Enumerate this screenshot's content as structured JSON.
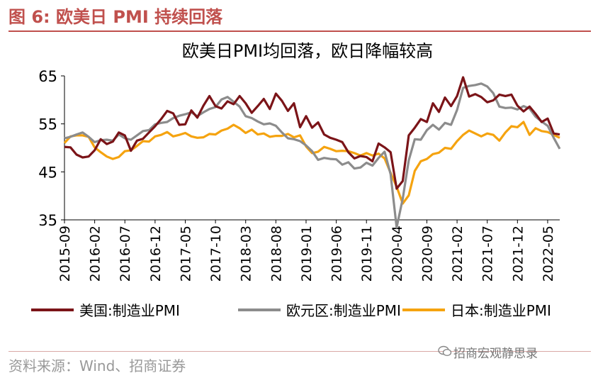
{
  "figure_title": "图 6:  欧美日 PMI 持续回落",
  "source": "资料来源：Wind、招商证券",
  "watermark": "招商宏观静思录",
  "colors": {
    "accent": "#c0504d",
    "us": "#7b1418",
    "eu": "#8c8c8c",
    "jp": "#f5a30f"
  },
  "chart_data": {
    "type": "line",
    "title": "欧美日PMI均回落，欧日降幅较高",
    "ylim": [
      35,
      65
    ],
    "yticks": [
      35,
      45,
      55,
      65
    ],
    "xlim": [
      "2015-09",
      "2022-07"
    ],
    "xticks": [
      "2015-09",
      "2016-02",
      "2016-07",
      "2016-12",
      "2017-05",
      "2017-10",
      "2018-03",
      "2018-08",
      "2019-01",
      "2019-06",
      "2019-11",
      "2020-04",
      "2020-09",
      "2021-02",
      "2021-07",
      "2021-12",
      "2022-05"
    ],
    "series": [
      {
        "name": "美国:制造业PMI",
        "values": [
          [
            "2015-09",
            50.2
          ],
          [
            "2015-10",
            50.1
          ],
          [
            "2015-11",
            48.6
          ],
          [
            "2015-12",
            48.0
          ],
          [
            "2016-01",
            48.2
          ],
          [
            "2016-02",
            49.5
          ],
          [
            "2016-03",
            51.8
          ],
          [
            "2016-04",
            50.8
          ],
          [
            "2016-05",
            51.3
          ],
          [
            "2016-06",
            53.2
          ],
          [
            "2016-07",
            52.6
          ],
          [
            "2016-08",
            49.4
          ],
          [
            "2016-09",
            51.5
          ],
          [
            "2016-10",
            51.9
          ],
          [
            "2016-11",
            53.2
          ],
          [
            "2016-12",
            54.5
          ],
          [
            "2017-01",
            56.0
          ],
          [
            "2017-02",
            57.7
          ],
          [
            "2017-03",
            57.2
          ],
          [
            "2017-04",
            54.8
          ],
          [
            "2017-05",
            54.9
          ],
          [
            "2017-06",
            57.8
          ],
          [
            "2017-07",
            56.3
          ],
          [
            "2017-08",
            58.8
          ],
          [
            "2017-09",
            60.8
          ],
          [
            "2017-10",
            58.7
          ],
          [
            "2017-11",
            58.2
          ],
          [
            "2017-12",
            59.7
          ],
          [
            "2018-01",
            59.1
          ],
          [
            "2018-02",
            60.8
          ],
          [
            "2018-03",
            59.3
          ],
          [
            "2018-04",
            57.3
          ],
          [
            "2018-05",
            58.7
          ],
          [
            "2018-06",
            60.2
          ],
          [
            "2018-07",
            58.1
          ],
          [
            "2018-08",
            61.3
          ],
          [
            "2018-09",
            59.8
          ],
          [
            "2018-10",
            57.7
          ],
          [
            "2018-11",
            59.3
          ],
          [
            "2018-12",
            54.3
          ],
          [
            "2019-01",
            56.6
          ],
          [
            "2019-02",
            54.2
          ],
          [
            "2019-03",
            55.3
          ],
          [
            "2019-04",
            52.8
          ],
          [
            "2019-05",
            52.1
          ],
          [
            "2019-06",
            51.7
          ],
          [
            "2019-07",
            51.2
          ],
          [
            "2019-08",
            49.1
          ],
          [
            "2019-09",
            47.8
          ],
          [
            "2019-10",
            48.3
          ],
          [
            "2019-11",
            48.1
          ],
          [
            "2019-12",
            47.2
          ],
          [
            "2020-01",
            50.9
          ],
          [
            "2020-02",
            50.1
          ],
          [
            "2020-03",
            49.1
          ],
          [
            "2020-04",
            41.5
          ],
          [
            "2020-05",
            43.1
          ],
          [
            "2020-06",
            52.6
          ],
          [
            "2020-07",
            54.2
          ],
          [
            "2020-08",
            56.0
          ],
          [
            "2020-09",
            55.4
          ],
          [
            "2020-10",
            59.3
          ],
          [
            "2020-11",
            57.5
          ],
          [
            "2020-12",
            60.5
          ],
          [
            "2021-01",
            58.7
          ],
          [
            "2021-02",
            60.8
          ],
          [
            "2021-03",
            64.7
          ],
          [
            "2021-04",
            60.7
          ],
          [
            "2021-05",
            61.2
          ],
          [
            "2021-06",
            60.6
          ],
          [
            "2021-07",
            59.5
          ],
          [
            "2021-08",
            59.9
          ],
          [
            "2021-09",
            61.1
          ],
          [
            "2021-10",
            60.8
          ],
          [
            "2021-11",
            61.1
          ],
          [
            "2021-12",
            58.8
          ],
          [
            "2022-01",
            57.6
          ],
          [
            "2022-02",
            58.6
          ],
          [
            "2022-03",
            57.1
          ],
          [
            "2022-04",
            55.4
          ],
          [
            "2022-05",
            56.1
          ],
          [
            "2022-06",
            53.0
          ],
          [
            "2022-07",
            52.8
          ]
        ]
      },
      {
        "name": "欧元区:制造业PMI",
        "values": [
          [
            "2015-09",
            52.0
          ],
          [
            "2015-10",
            52.3
          ],
          [
            "2015-11",
            52.8
          ],
          [
            "2015-12",
            53.2
          ],
          [
            "2016-01",
            52.3
          ],
          [
            "2016-02",
            51.2
          ],
          [
            "2016-03",
            51.6
          ],
          [
            "2016-04",
            51.7
          ],
          [
            "2016-05",
            51.5
          ],
          [
            "2016-06",
            52.8
          ],
          [
            "2016-07",
            52.0
          ],
          [
            "2016-08",
            51.7
          ],
          [
            "2016-09",
            52.6
          ],
          [
            "2016-10",
            53.5
          ],
          [
            "2016-11",
            53.7
          ],
          [
            "2016-12",
            54.9
          ],
          [
            "2017-01",
            55.2
          ],
          [
            "2017-02",
            55.4
          ],
          [
            "2017-03",
            56.2
          ],
          [
            "2017-04",
            56.7
          ],
          [
            "2017-05",
            57.0
          ],
          [
            "2017-06",
            57.4
          ],
          [
            "2017-07",
            56.6
          ],
          [
            "2017-08",
            57.4
          ],
          [
            "2017-09",
            58.1
          ],
          [
            "2017-10",
            58.5
          ],
          [
            "2017-11",
            60.1
          ],
          [
            "2017-12",
            60.6
          ],
          [
            "2018-01",
            59.6
          ],
          [
            "2018-02",
            58.6
          ],
          [
            "2018-03",
            56.6
          ],
          [
            "2018-04",
            56.2
          ],
          [
            "2018-05",
            55.5
          ],
          [
            "2018-06",
            54.9
          ],
          [
            "2018-07",
            55.1
          ],
          [
            "2018-08",
            54.6
          ],
          [
            "2018-09",
            53.2
          ],
          [
            "2018-10",
            52.0
          ],
          [
            "2018-11",
            51.8
          ],
          [
            "2018-12",
            51.4
          ],
          [
            "2019-01",
            50.5
          ],
          [
            "2019-02",
            49.3
          ],
          [
            "2019-03",
            47.5
          ],
          [
            "2019-04",
            47.9
          ],
          [
            "2019-05",
            47.7
          ],
          [
            "2019-06",
            47.6
          ],
          [
            "2019-07",
            46.5
          ],
          [
            "2019-08",
            47.0
          ],
          [
            "2019-09",
            45.7
          ],
          [
            "2019-10",
            45.9
          ],
          [
            "2019-11",
            46.9
          ],
          [
            "2019-12",
            46.3
          ],
          [
            "2020-01",
            47.9
          ],
          [
            "2020-02",
            49.2
          ],
          [
            "2020-03",
            44.5
          ],
          [
            "2020-04",
            33.4
          ],
          [
            "2020-05",
            39.4
          ],
          [
            "2020-06",
            47.4
          ],
          [
            "2020-07",
            51.8
          ],
          [
            "2020-08",
            51.7
          ],
          [
            "2020-09",
            53.7
          ],
          [
            "2020-10",
            54.8
          ],
          [
            "2020-11",
            53.8
          ],
          [
            "2020-12",
            55.2
          ],
          [
            "2021-01",
            54.8
          ],
          [
            "2021-02",
            57.9
          ],
          [
            "2021-03",
            62.5
          ],
          [
            "2021-04",
            62.9
          ],
          [
            "2021-05",
            63.1
          ],
          [
            "2021-06",
            63.4
          ],
          [
            "2021-07",
            62.8
          ],
          [
            "2021-08",
            61.4
          ],
          [
            "2021-09",
            58.6
          ],
          [
            "2021-10",
            58.3
          ],
          [
            "2021-11",
            58.4
          ],
          [
            "2021-12",
            58.0
          ],
          [
            "2022-01",
            58.7
          ],
          [
            "2022-02",
            58.2
          ],
          [
            "2022-03",
            56.5
          ],
          [
            "2022-04",
            55.5
          ],
          [
            "2022-05",
            54.6
          ],
          [
            "2022-06",
            52.1
          ],
          [
            "2022-07",
            49.8
          ]
        ]
      },
      {
        "name": "日本:制造业PMI",
        "values": [
          [
            "2015-09",
            51.0
          ],
          [
            "2015-10",
            52.4
          ],
          [
            "2015-11",
            52.6
          ],
          [
            "2015-12",
            52.6
          ],
          [
            "2016-01",
            52.3
          ],
          [
            "2016-02",
            50.1
          ],
          [
            "2016-03",
            49.1
          ],
          [
            "2016-04",
            48.2
          ],
          [
            "2016-05",
            47.7
          ],
          [
            "2016-06",
            48.1
          ],
          [
            "2016-07",
            49.3
          ],
          [
            "2016-08",
            49.5
          ],
          [
            "2016-09",
            50.4
          ],
          [
            "2016-10",
            51.4
          ],
          [
            "2016-11",
            51.3
          ],
          [
            "2016-12",
            52.4
          ],
          [
            "2017-01",
            52.7
          ],
          [
            "2017-02",
            53.3
          ],
          [
            "2017-03",
            52.4
          ],
          [
            "2017-04",
            52.7
          ],
          [
            "2017-05",
            53.1
          ],
          [
            "2017-06",
            52.4
          ],
          [
            "2017-07",
            52.1
          ],
          [
            "2017-08",
            52.2
          ],
          [
            "2017-09",
            52.9
          ],
          [
            "2017-10",
            52.8
          ],
          [
            "2017-11",
            53.6
          ],
          [
            "2017-12",
            54.0
          ],
          [
            "2018-01",
            54.8
          ],
          [
            "2018-02",
            54.1
          ],
          [
            "2018-03",
            53.1
          ],
          [
            "2018-04",
            53.8
          ],
          [
            "2018-05",
            52.8
          ],
          [
            "2018-06",
            53.0
          ],
          [
            "2018-07",
            52.3
          ],
          [
            "2018-08",
            52.5
          ],
          [
            "2018-09",
            52.5
          ],
          [
            "2018-10",
            52.9
          ],
          [
            "2018-11",
            52.2
          ],
          [
            "2018-12",
            52.6
          ],
          [
            "2019-01",
            50.3
          ],
          [
            "2019-02",
            48.9
          ],
          [
            "2019-03",
            49.2
          ],
          [
            "2019-04",
            50.2
          ],
          [
            "2019-05",
            49.8
          ],
          [
            "2019-06",
            49.3
          ],
          [
            "2019-07",
            49.4
          ],
          [
            "2019-08",
            49.3
          ],
          [
            "2019-09",
            48.9
          ],
          [
            "2019-10",
            48.4
          ],
          [
            "2019-11",
            48.9
          ],
          [
            "2019-12",
            48.4
          ],
          [
            "2020-01",
            48.8
          ],
          [
            "2020-02",
            47.8
          ],
          [
            "2020-03",
            44.8
          ],
          [
            "2020-04",
            41.9
          ],
          [
            "2020-05",
            38.4
          ],
          [
            "2020-06",
            40.1
          ],
          [
            "2020-07",
            45.2
          ],
          [
            "2020-08",
            47.2
          ],
          [
            "2020-09",
            47.7
          ],
          [
            "2020-10",
            48.7
          ],
          [
            "2020-11",
            49.0
          ],
          [
            "2020-12",
            50.0
          ],
          [
            "2021-01",
            49.8
          ],
          [
            "2021-02",
            51.4
          ],
          [
            "2021-03",
            52.7
          ],
          [
            "2021-04",
            53.6
          ],
          [
            "2021-05",
            53.0
          ],
          [
            "2021-06",
            52.4
          ],
          [
            "2021-07",
            53.0
          ],
          [
            "2021-08",
            52.7
          ],
          [
            "2021-09",
            51.5
          ],
          [
            "2021-10",
            53.2
          ],
          [
            "2021-11",
            54.5
          ],
          [
            "2021-12",
            54.3
          ],
          [
            "2022-01",
            55.4
          ],
          [
            "2022-02",
            52.7
          ],
          [
            "2022-03",
            54.1
          ],
          [
            "2022-04",
            53.5
          ],
          [
            "2022-05",
            53.3
          ],
          [
            "2022-06",
            52.7
          ],
          [
            "2022-07",
            52.1
          ]
        ]
      }
    ]
  }
}
